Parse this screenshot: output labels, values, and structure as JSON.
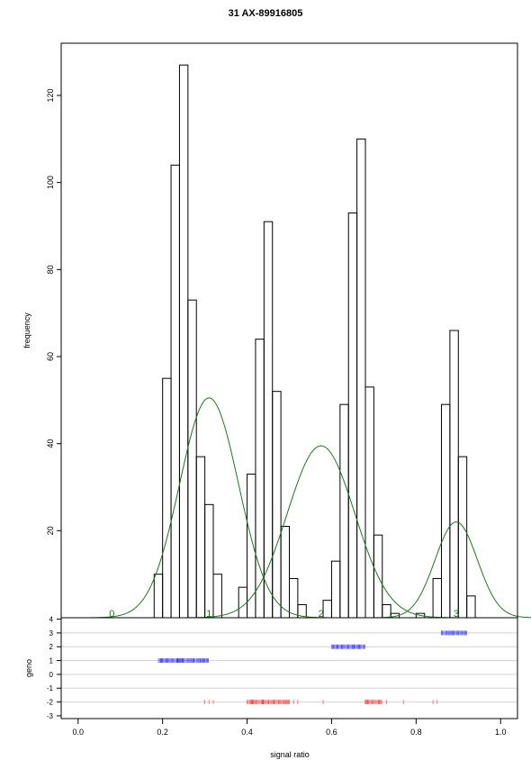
{
  "chart_data": {
    "type": "bar",
    "title": "31 AX-89916805",
    "histogram": {
      "ylabel": "frequency",
      "y_ticks": [
        "20",
        "40",
        "60",
        "80",
        "100",
        "120"
      ],
      "y_tick_values": [
        20,
        40,
        60,
        80,
        100,
        120
      ],
      "ylim": [
        0,
        132
      ],
      "bin_width": 0.02,
      "bins": [
        {
          "start": 0.18,
          "count": 10
        },
        {
          "start": 0.2,
          "count": 55
        },
        {
          "start": 0.22,
          "count": 104
        },
        {
          "start": 0.24,
          "count": 127
        },
        {
          "start": 0.26,
          "count": 73
        },
        {
          "start": 0.28,
          "count": 37
        },
        {
          "start": 0.3,
          "count": 26
        },
        {
          "start": 0.32,
          "count": 10
        },
        {
          "start": 0.38,
          "count": 7
        },
        {
          "start": 0.4,
          "count": 33
        },
        {
          "start": 0.42,
          "count": 64
        },
        {
          "start": 0.44,
          "count": 91
        },
        {
          "start": 0.46,
          "count": 52
        },
        {
          "start": 0.48,
          "count": 21
        },
        {
          "start": 0.5,
          "count": 9
        },
        {
          "start": 0.52,
          "count": 3
        },
        {
          "start": 0.58,
          "count": 4
        },
        {
          "start": 0.6,
          "count": 13
        },
        {
          "start": 0.62,
          "count": 49
        },
        {
          "start": 0.64,
          "count": 93
        },
        {
          "start": 0.66,
          "count": 110
        },
        {
          "start": 0.68,
          "count": 53
        },
        {
          "start": 0.7,
          "count": 19
        },
        {
          "start": 0.72,
          "count": 3
        },
        {
          "start": 0.74,
          "count": 1
        },
        {
          "start": 0.8,
          "count": 1
        },
        {
          "start": 0.84,
          "count": 9
        },
        {
          "start": 0.86,
          "count": 49
        },
        {
          "start": 0.88,
          "count": 66
        },
        {
          "start": 0.9,
          "count": 37
        },
        {
          "start": 0.92,
          "count": 5
        }
      ],
      "fitted_curves": [
        {
          "mean": 0.31,
          "sd": 0.07,
          "peak": 50.5,
          "label": "1"
        },
        {
          "mean": 0.575,
          "sd": 0.08,
          "peak": 39.5,
          "label": "2"
        },
        {
          "mean": 0.895,
          "sd": 0.05,
          "peak": 22,
          "label": "3"
        }
      ],
      "curve_labels": [
        {
          "x": 0.08,
          "text": "0"
        },
        {
          "x": 0.31,
          "text": "1"
        },
        {
          "x": 0.575,
          "text": "2"
        },
        {
          "x": 0.895,
          "text": "3"
        }
      ],
      "curve_color": "#1a7a1a"
    },
    "geno_strip": {
      "ylabel": "geno",
      "y_ticks": [
        "4",
        "3",
        "2",
        "1",
        "0",
        "-1",
        "-2",
        "-3"
      ],
      "y_tick_values": [
        4,
        3,
        2,
        1,
        0,
        -1,
        -2,
        -3
      ],
      "ylim": [
        -3.2,
        4.1
      ],
      "gridlines": [
        3,
        2,
        1,
        0,
        -1,
        -2
      ],
      "rug": [
        {
          "geno": 3,
          "color": "#0000ff",
          "x_from": 0.86,
          "x_to": 0.92
        },
        {
          "geno": 2,
          "color": "#0000ff",
          "x_from": 0.6,
          "x_to": 0.68
        },
        {
          "geno": 1,
          "color": "#0000ff",
          "x_from": 0.19,
          "x_to": 0.31
        },
        {
          "geno": -2,
          "color": "#ff0000",
          "x_from": 0.4,
          "x_to": 0.5
        },
        {
          "geno": -2,
          "color": "#ff0000",
          "x_from": 0.68,
          "x_to": 0.72
        }
      ],
      "rug_scatter": [
        {
          "geno": -2,
          "color": "#ff0000",
          "x": [
            0.3,
            0.31,
            0.32,
            0.51,
            0.52,
            0.58,
            0.73,
            0.77,
            0.84,
            0.85
          ]
        }
      ]
    },
    "x_axis": {
      "label": "signal ratio",
      "ticks": [
        "0.0",
        "0.2",
        "0.4",
        "0.6",
        "0.8",
        "1.0"
      ],
      "tick_values": [
        0,
        0.2,
        0.4,
        0.6,
        0.8,
        1.0
      ],
      "xlim": [
        -0.04,
        1.04
      ]
    },
    "grid": false
  }
}
